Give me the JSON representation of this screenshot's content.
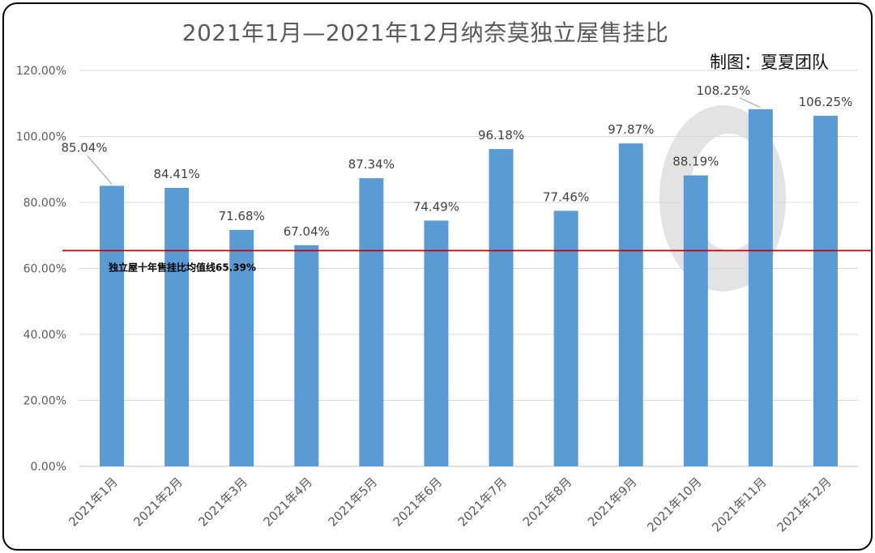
{
  "title": "2021年1月—2021年12月纳奈莫独立屋售挂比",
  "credit": "制图：夏夏团队",
  "chart_data": {
    "type": "bar",
    "categories": [
      "2021年1月",
      "2021年2月",
      "2021年3月",
      "2021年4月",
      "2021年5月",
      "2021年6月",
      "2021年7月",
      "2021年8月",
      "2021年9月",
      "2021年10月",
      "2021年11月",
      "2021年12月"
    ],
    "values": [
      85.04,
      84.41,
      71.68,
      67.04,
      87.34,
      74.49,
      96.18,
      77.46,
      97.87,
      88.19,
      108.25,
      106.25
    ],
    "data_labels": [
      "85.04%",
      "84.41%",
      "71.68%",
      "67.04%",
      "87.34%",
      "74.49%",
      "96.18%",
      "77.46%",
      "97.87%",
      "88.19%",
      "108.25%",
      "106.25%"
    ],
    "ylim": [
      0,
      120
    ],
    "yticks": [
      0,
      20,
      40,
      60,
      80,
      100,
      120
    ],
    "ytick_labels": [
      "0.00%",
      "20.00%",
      "40.00%",
      "60.00%",
      "80.00%",
      "100.00%",
      "120.00%"
    ],
    "reference_line": {
      "value": 65.39,
      "label": "独立屋十年售挂比均值线65.39%",
      "color": "#c00000"
    },
    "bar_color": "#5b9bd5",
    "grid": true
  }
}
